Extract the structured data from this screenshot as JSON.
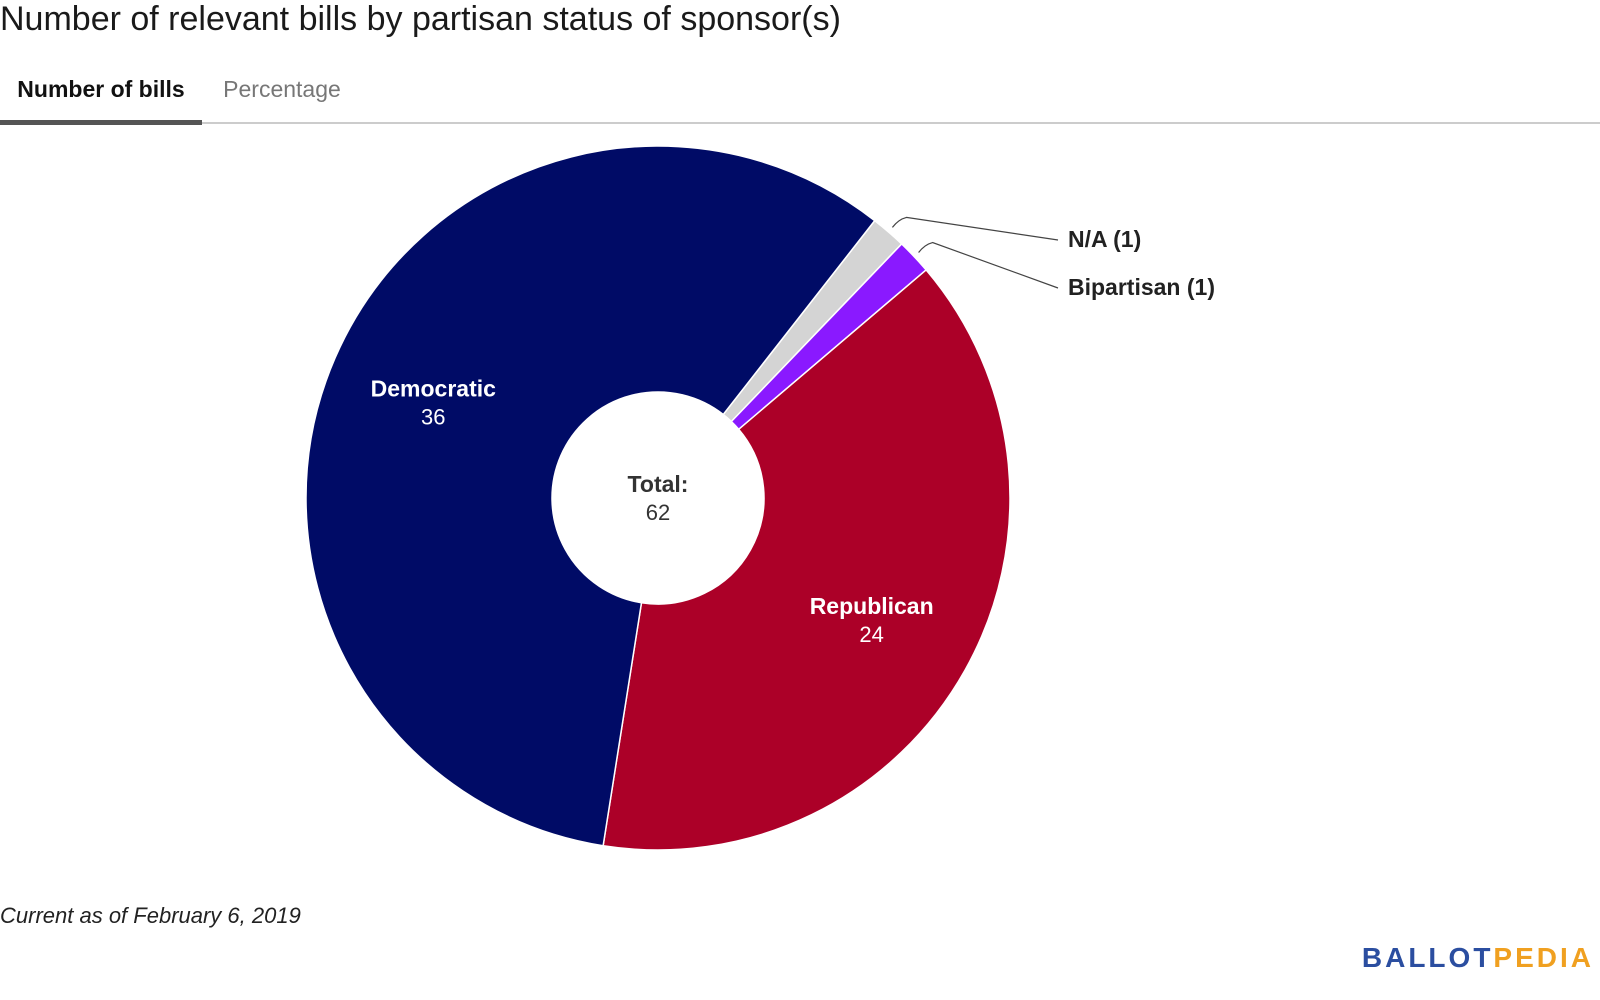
{
  "header": {
    "title": "Number of relevant bills by partisan status of sponsor(s)"
  },
  "tabs": [
    {
      "label": "Number of bills",
      "active": true
    },
    {
      "label": "Percentage",
      "active": false
    }
  ],
  "chart_data": {
    "type": "pie",
    "donut": true,
    "center_label": "Total:",
    "center_value": "62",
    "slices": [
      {
        "name": "Democratic",
        "value": 36,
        "color": "#000b66",
        "label_inside": true
      },
      {
        "name": "N/A",
        "value": 1,
        "color": "#d4d4d4",
        "label_inside": false
      },
      {
        "name": "Bipartisan",
        "value": 1,
        "color": "#8a19ff",
        "label_inside": false
      },
      {
        "name": "Republican",
        "value": 24,
        "color": "#ac0028",
        "label_inside": true
      }
    ]
  },
  "footer": {
    "note": "Current as of February 6, 2019",
    "logo_part1": "BALLOT",
    "logo_part2": "PEDIA"
  }
}
